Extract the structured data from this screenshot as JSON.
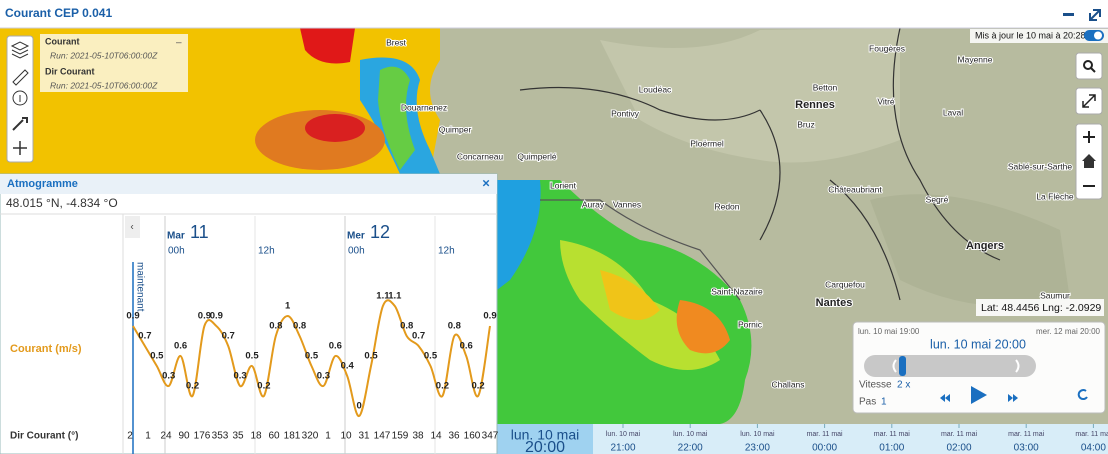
{
  "header": {
    "title": "Courant CEP 0.041"
  },
  "map": {
    "updated": "Mis à jour le 10 mai à 20:28",
    "coordinates": "Lat: 48.4456 Lng: -2.0929",
    "places": [
      "Brest",
      "Douarnenez",
      "Quimper",
      "Concarneau",
      "Quimperlé",
      "Pontivy",
      "Loudéac",
      "Ploërmel",
      "Lorient",
      "Auray",
      "Vannes",
      "Redon",
      "Rennes",
      "Betton",
      "Bruz",
      "Vitré",
      "Fougères",
      "Mayenne",
      "Laval",
      "Châteaubriant",
      "Segré",
      "Angers",
      "Sablé-sur-Sarthe",
      "La Flèche",
      "Saumur",
      "Nantes",
      "Carquefou",
      "Saint-Nazaire",
      "Pornic",
      "Challans"
    ]
  },
  "layers": [
    {
      "name": "Courant",
      "run": "Run: 2021-05-10T06:00:00Z"
    },
    {
      "name": "Dir Courant",
      "run": "Run: 2021-05-10T06:00:00Z"
    }
  ],
  "player": {
    "start": "lun. 10 mai 19:00",
    "end": "mer. 12 mai 20:00",
    "current": "lun. 10 mai 20:00",
    "speed_label": "Vitesse",
    "speed": "2 x",
    "step_label": "Pas",
    "step": "1"
  },
  "timeline": {
    "current_date": "lun. 10 mai",
    "current_time": "20:00",
    "ticks": [
      {
        "date": "lun. 10 mai",
        "time": "21:00"
      },
      {
        "date": "lun. 10 mai",
        "time": "22:00"
      },
      {
        "date": "lun. 10 mai",
        "time": "23:00"
      },
      {
        "date": "mar. 11 mai",
        "time": "00:00"
      },
      {
        "date": "mar. 11 mai",
        "time": "01:00"
      },
      {
        "date": "mar. 11 mai",
        "time": "02:00"
      },
      {
        "date": "mar. 11 mai",
        "time": "03:00"
      },
      {
        "date": "mar. 11 mai",
        "time": "04:00"
      }
    ]
  },
  "atmogramme": {
    "title": "Atmogramme",
    "location": "48.015 °N, -4.834 °O",
    "days": [
      {
        "weekday": "Mar",
        "day": "11"
      },
      {
        "weekday": "Mer",
        "day": "12"
      }
    ],
    "hours": [
      "00h",
      "12h",
      "00h",
      "12h"
    ],
    "now": "maintenant",
    "direction_label": "Dir Courant (°)",
    "directions": [
      2,
      1,
      24,
      90,
      176,
      353,
      35,
      18,
      60,
      181,
      320,
      1,
      10,
      31,
      147,
      159,
      38,
      14,
      36,
      160,
      347
    ]
  },
  "chart_data": {
    "type": "line",
    "series": [
      {
        "name": "Courant (m/s)",
        "color": "#e39a1c",
        "values": [
          0.9,
          0.7,
          0.5,
          0.3,
          0.6,
          0.2,
          0.9,
          0.9,
          0.7,
          0.3,
          0.5,
          0.2,
          0.8,
          1,
          0.8,
          0.5,
          0.3,
          0.6,
          0.4,
          0,
          0.5,
          1.1,
          1.1,
          0.8,
          0.7,
          0.5,
          0.2,
          0.8,
          0.6,
          0.2,
          0.9
        ]
      }
    ]
  }
}
